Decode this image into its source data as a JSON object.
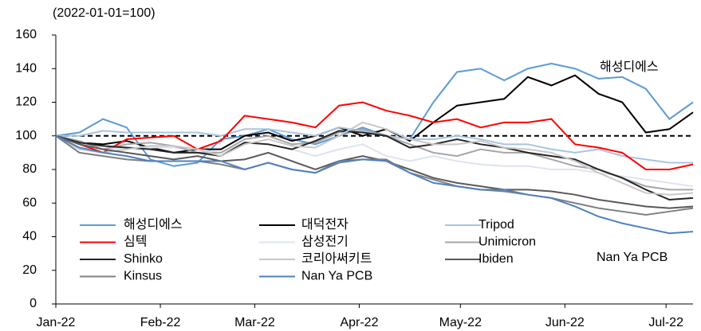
{
  "chart_data": {
    "type": "line",
    "y_unit_label": "(2022-01-01=100)",
    "x": [
      0,
      7,
      14,
      21,
      28,
      35,
      42,
      49,
      56,
      63,
      70,
      77,
      84,
      91,
      98,
      105,
      112,
      119,
      126,
      133,
      140,
      147,
      154,
      161,
      168,
      175,
      182,
      189
    ],
    "xlim": [
      0,
      189
    ],
    "xticks": [
      {
        "value": 0,
        "label": "Jan-22"
      },
      {
        "value": 31,
        "label": "Feb-22"
      },
      {
        "value": 59,
        "label": "Mar-22"
      },
      {
        "value": 90,
        "label": "Apr-22"
      },
      {
        "value": 120,
        "label": "May-22"
      },
      {
        "value": 151,
        "label": "Jun-22"
      },
      {
        "value": 181,
        "label": "Jul-22"
      }
    ],
    "ylim": [
      0,
      160
    ],
    "yticks": [
      0,
      20,
      40,
      60,
      80,
      100,
      120,
      140,
      160
    ],
    "reference_line": 100,
    "legend": "lower-left",
    "annotations": [
      "해성디에스",
      "Nan Ya PCB"
    ],
    "series": [
      {
        "name": "해성디에스",
        "color": "#5b9bd5",
        "values": [
          100,
          102,
          110,
          105,
          86,
          82,
          84,
          98,
          100,
          104,
          98,
          95,
          100,
          105,
          100,
          98,
          120,
          138,
          140,
          133,
          140,
          143,
          140,
          134,
          135,
          128,
          110,
          120
        ]
      },
      {
        "name": "대덕전자",
        "color": "#000000",
        "values": [
          100,
          96,
          95,
          97,
          93,
          90,
          92,
          92,
          100,
          102,
          97,
          100,
          105,
          100,
          104,
          97,
          108,
          118,
          120,
          122,
          135,
          130,
          136,
          125,
          120,
          102,
          104,
          114
        ]
      },
      {
        "name": "Tripod",
        "color": "#a9c4e0",
        "values": [
          100,
          100,
          103,
          102,
          102,
          102,
          102,
          100,
          104,
          104,
          102,
          100,
          105,
          103,
          100,
          98,
          98,
          100,
          98,
          95,
          95,
          92,
          90,
          92,
          88,
          86,
          84,
          84
        ]
      },
      {
        "name": "심텍",
        "color": "#ff0000",
        "values": [
          100,
          95,
          90,
          98,
          99,
          100,
          92,
          97,
          112,
          110,
          108,
          105,
          118,
          120,
          115,
          112,
          108,
          110,
          105,
          108,
          108,
          110,
          95,
          93,
          90,
          80,
          80,
          83
        ]
      },
      {
        "name": "삼성전기",
        "color": "#dde4ee",
        "values": [
          100,
          95,
          92,
          93,
          93,
          93,
          92,
          90,
          96,
          95,
          92,
          88,
          92,
          95,
          88,
          85,
          88,
          85,
          83,
          82,
          82,
          80,
          80,
          78,
          76,
          74,
          72,
          70
        ]
      },
      {
        "name": "Unimicron",
        "color": "#a6a6a6",
        "values": [
          100,
          97,
          92,
          95,
          96,
          94,
          90,
          90,
          98,
          100,
          95,
          96,
          102,
          104,
          100,
          95,
          90,
          88,
          92,
          90,
          90,
          86,
          82,
          80,
          75,
          70,
          68,
          68
        ]
      },
      {
        "name": "Shinko",
        "color": "#262626",
        "values": [
          100,
          96,
          94,
          93,
          92,
          90,
          90,
          88,
          96,
          95,
          92,
          97,
          103,
          102,
          100,
          93,
          95,
          98,
          95,
          93,
          90,
          88,
          86,
          80,
          75,
          68,
          62,
          63
        ]
      },
      {
        "name": "코리아써키트",
        "color": "#c8c8c8",
        "values": [
          100,
          92,
          90,
          92,
          94,
          94,
          92,
          88,
          95,
          98,
          94,
          93,
          100,
          108,
          104,
          98,
          95,
          95,
          97,
          93,
          92,
          90,
          85,
          78,
          72,
          66,
          65,
          66
        ]
      },
      {
        "name": "Ibiden",
        "color": "#595959",
        "values": [
          100,
          95,
          92,
          90,
          88,
          86,
          88,
          85,
          86,
          90,
          85,
          80,
          85,
          88,
          85,
          80,
          75,
          72,
          70,
          68,
          68,
          67,
          65,
          62,
          60,
          58,
          57,
          58
        ]
      },
      {
        "name": "Kinsus",
        "color": "#808080",
        "values": [
          100,
          90,
          88,
          86,
          85,
          85,
          85,
          83,
          80,
          84,
          80,
          78,
          84,
          86,
          86,
          78,
          74,
          70,
          68,
          67,
          65,
          63,
          60,
          57,
          55,
          53,
          55,
          57
        ]
      },
      {
        "name": "Nan Ya PCB",
        "color": "#4f81bd",
        "values": [
          100,
          93,
          90,
          88,
          85,
          85,
          85,
          85,
          80,
          84,
          80,
          78,
          85,
          86,
          85,
          78,
          72,
          70,
          68,
          68,
          65,
          63,
          58,
          52,
          48,
          45,
          42,
          43
        ]
      }
    ]
  }
}
